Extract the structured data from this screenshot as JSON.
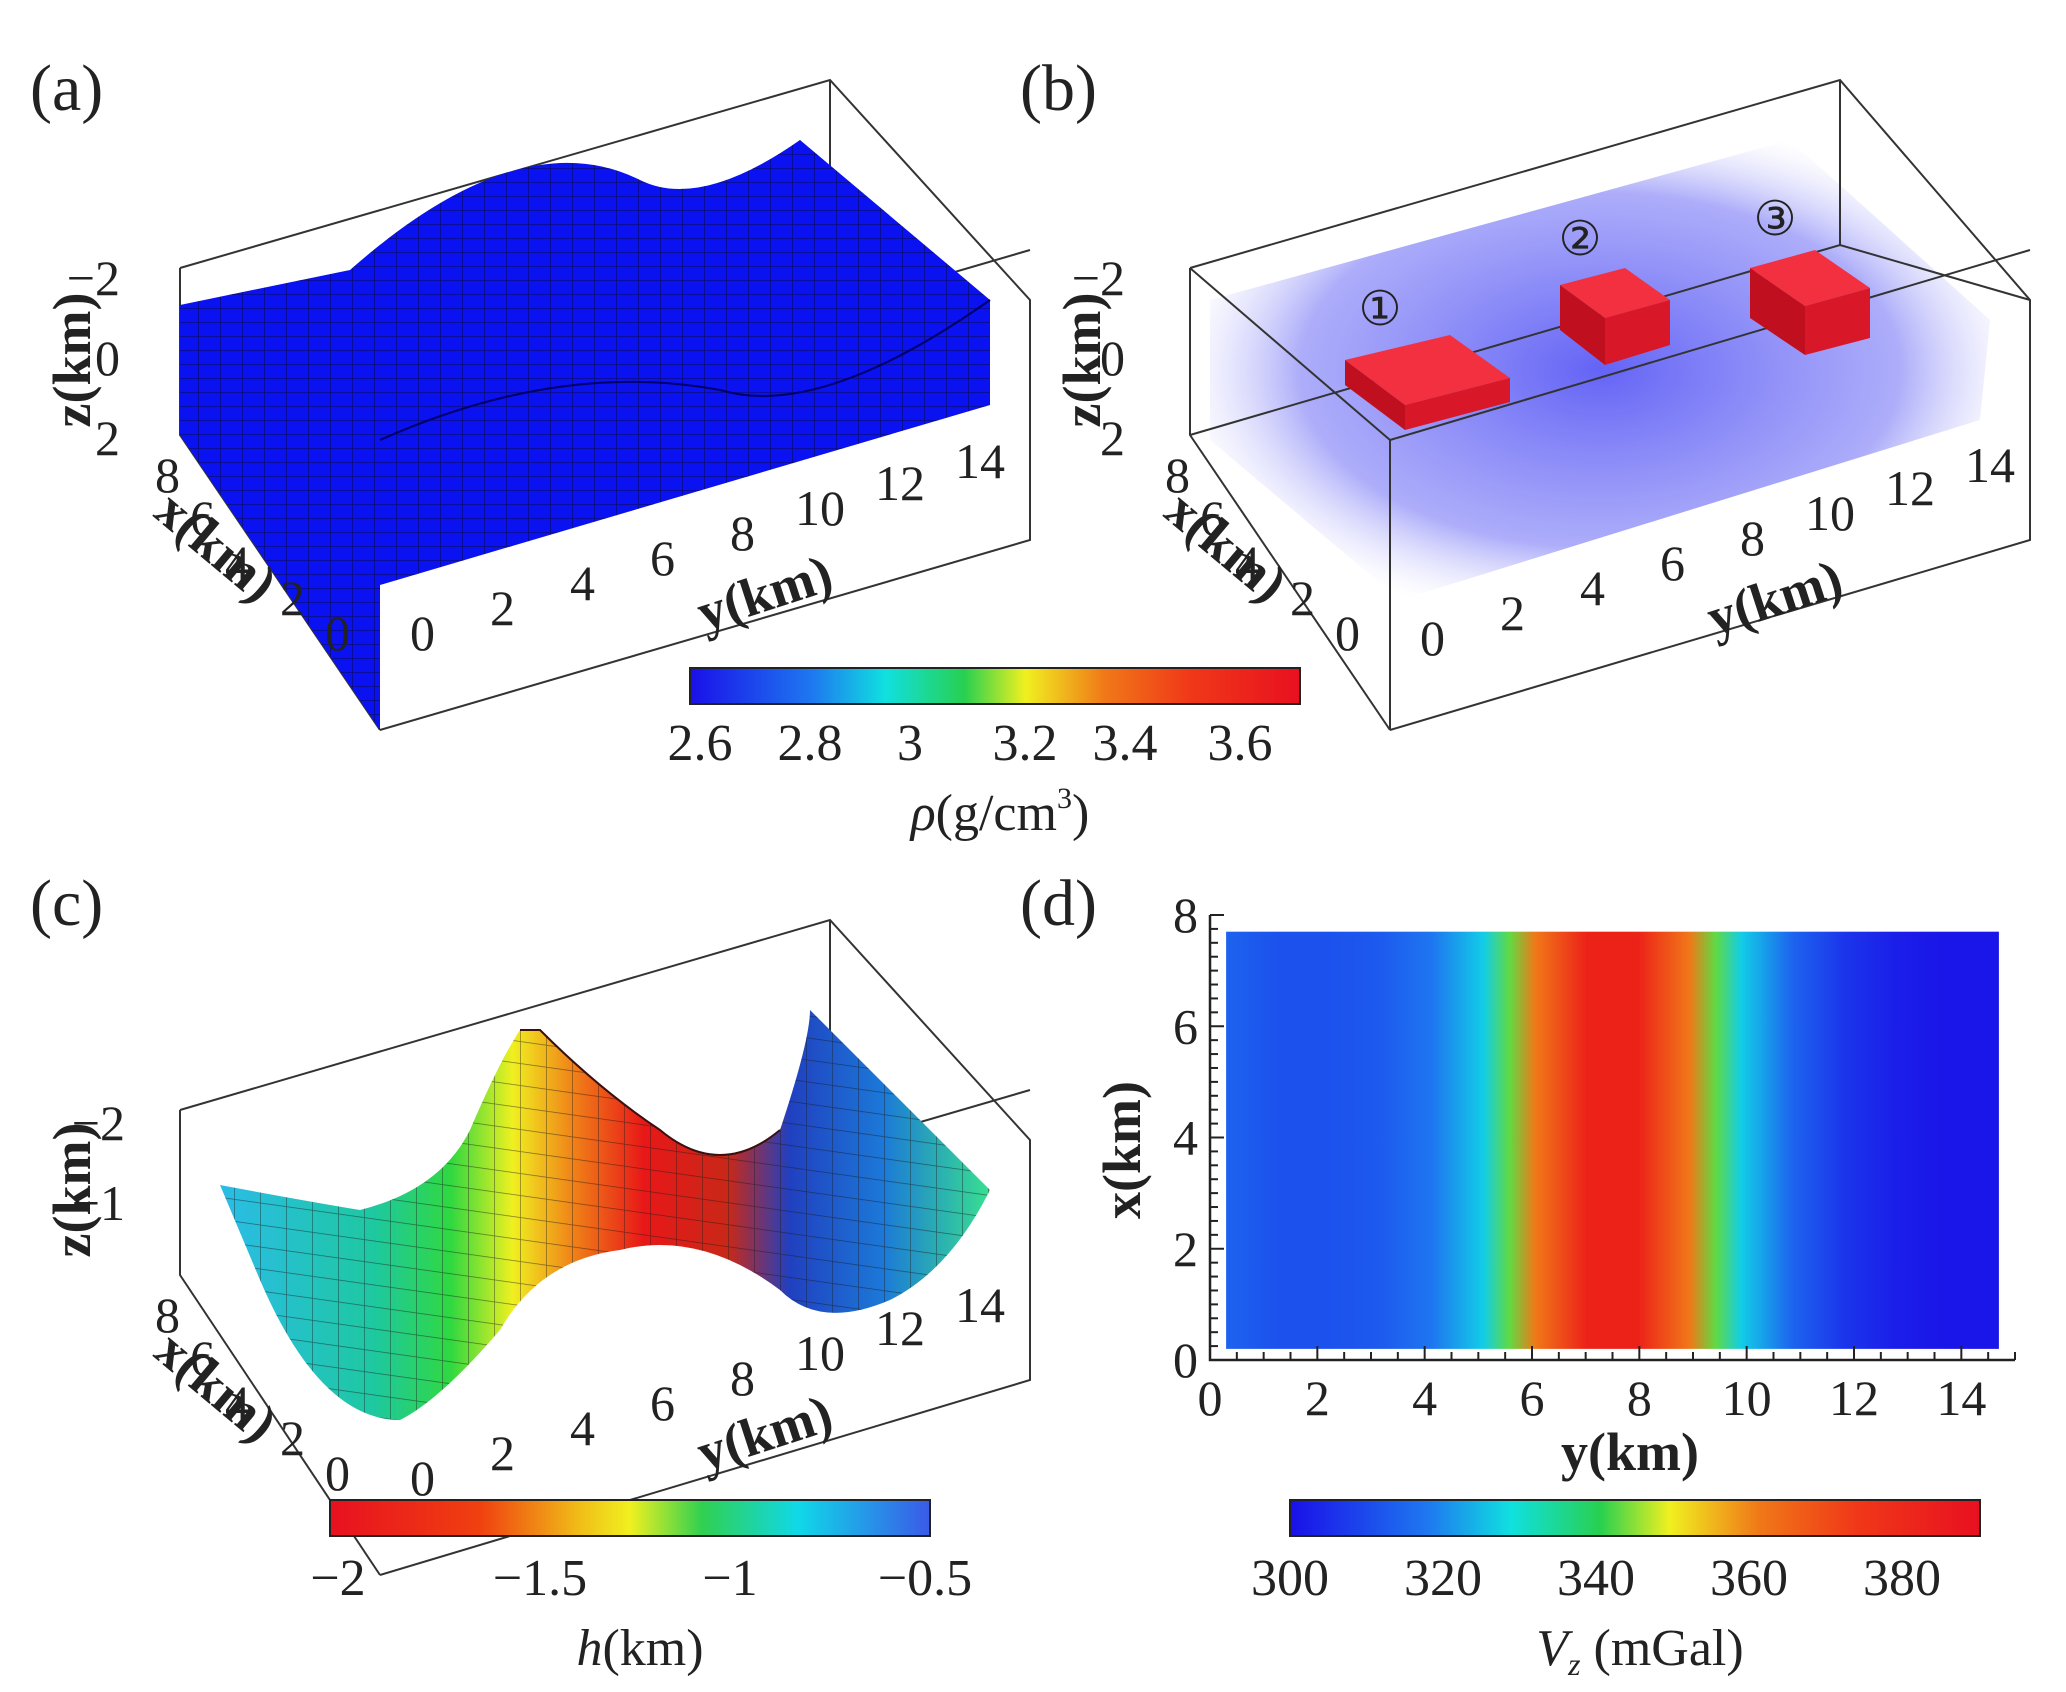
{
  "panels": {
    "a": {
      "label": "(a)",
      "zlabel": "z(km)",
      "xlabel": "x(km)",
      "ylabel": "y(km)",
      "zticks": [
        "−2",
        "0",
        "2"
      ],
      "xticks": [
        "8",
        "6",
        "4",
        "2",
        "0"
      ],
      "yticks": [
        "0",
        "2",
        "4",
        "6",
        "8",
        "10",
        "12",
        "14"
      ],
      "fill_color": "#0a12f2"
    },
    "b": {
      "label": "(b)",
      "zlabel": "z(km)",
      "xlabel": "x(km)",
      "ylabel": "y(km)",
      "zticks": [
        "−2",
        "0",
        "2"
      ],
      "xticks": [
        "8",
        "6",
        "4",
        "2",
        "0"
      ],
      "yticks": [
        "0",
        "2",
        "4",
        "6",
        "8",
        "10",
        "12",
        "14"
      ],
      "markers": [
        "①",
        "②",
        "③"
      ],
      "anomaly_color": "#e8141e",
      "background_color": "#6a6af6"
    },
    "c": {
      "label": "(c)",
      "zlabel": "z(km)",
      "xlabel": "x(km)",
      "ylabel": "y(km)",
      "zticks": [
        "−2",
        "−1"
      ],
      "xticks": [
        "8",
        "6",
        "4",
        "2",
        "0"
      ],
      "yticks": [
        "0",
        "2",
        "4",
        "6",
        "8",
        "10",
        "12",
        "14"
      ]
    },
    "d": {
      "label": "(d)",
      "xlabel": "y(km)",
      "ylabel": "x(km)",
      "xticks": [
        "0",
        "2",
        "4",
        "6",
        "8",
        "10",
        "12",
        "14"
      ],
      "yticks": [
        "0",
        "2",
        "4",
        "6",
        "8"
      ]
    }
  },
  "colorbars": {
    "density": {
      "ticks": [
        "2.6",
        "2.8",
        "3",
        "3.2",
        "3.4",
        "3.6"
      ],
      "title_symbol": "ρ",
      "title_unit": "(g/cm",
      "title_exp": "3",
      "title_close": ")"
    },
    "depth": {
      "ticks": [
        "−2",
        "−1.5",
        "−1",
        "−0.5"
      ],
      "title_symbol": "h",
      "title_unit": "(km)"
    },
    "gravity": {
      "ticks": [
        "300",
        "320",
        "340",
        "360",
        "380"
      ],
      "title_symbol": "V",
      "title_sub": "z",
      "title_unit": " (mGal)"
    }
  },
  "chart_data": [
    {
      "type": "surface",
      "title": "(a)",
      "xlabel": "x(km)",
      "ylabel": "y(km)",
      "zlabel": "z(km)",
      "xlim": [
        0,
        8
      ],
      "ylim": [
        0,
        15
      ],
      "zlim": [
        -2,
        2
      ],
      "description_values": {
        "density_g_cm3": 2.67
      }
    },
    {
      "type": "scatter",
      "title": "(b)",
      "xlabel": "x(km)",
      "ylabel": "y(km)",
      "zlabel": "z(km)",
      "xlim": [
        0,
        8
      ],
      "ylim": [
        0,
        15
      ],
      "zlim": [
        -2,
        2
      ],
      "series": [
        {
          "name": "①",
          "density_g_cm3": 3.67
        },
        {
          "name": "②",
          "density_g_cm3": 3.67
        },
        {
          "name": "③",
          "density_g_cm3": 3.67
        }
      ]
    },
    {
      "type": "surface",
      "title": "(c)",
      "xlabel": "x(km)",
      "ylabel": "y(km)",
      "zlabel": "z(km)",
      "xlim": [
        0,
        8
      ],
      "ylim": [
        0,
        15
      ],
      "y": [
        0,
        1,
        2,
        3,
        4,
        5,
        6,
        7,
        8,
        9,
        10,
        11,
        12,
        13,
        14,
        15
      ],
      "h": [
        -1.0,
        -0.9,
        -0.85,
        -0.9,
        -1.1,
        -1.4,
        -1.75,
        -1.95,
        -1.85,
        -1.5,
        -1.05,
        -0.75,
        -0.65,
        -0.75,
        -0.95,
        -1.1
      ]
    },
    {
      "type": "heatmap",
      "title": "(d)",
      "xlabel": "y(km)",
      "ylabel": "x(km)",
      "xlim": [
        0,
        15
      ],
      "ylim": [
        0,
        8
      ],
      "y": [
        0,
        1,
        2,
        3,
        4,
        5,
        5.5,
        6,
        7,
        8,
        9,
        9.5,
        10,
        11,
        12,
        13,
        14,
        15
      ],
      "Vz_mGal": [
        318,
        314,
        314,
        316,
        322,
        334,
        352,
        372,
        386,
        386,
        372,
        352,
        334,
        318,
        308,
        303,
        301,
        301
      ]
    }
  ],
  "colorscale": [
    "#1a10e8",
    "#1e50f0",
    "#18c8f0",
    "#1ee070",
    "#f0f020",
    "#f0a018",
    "#f04010",
    "#e81018"
  ]
}
